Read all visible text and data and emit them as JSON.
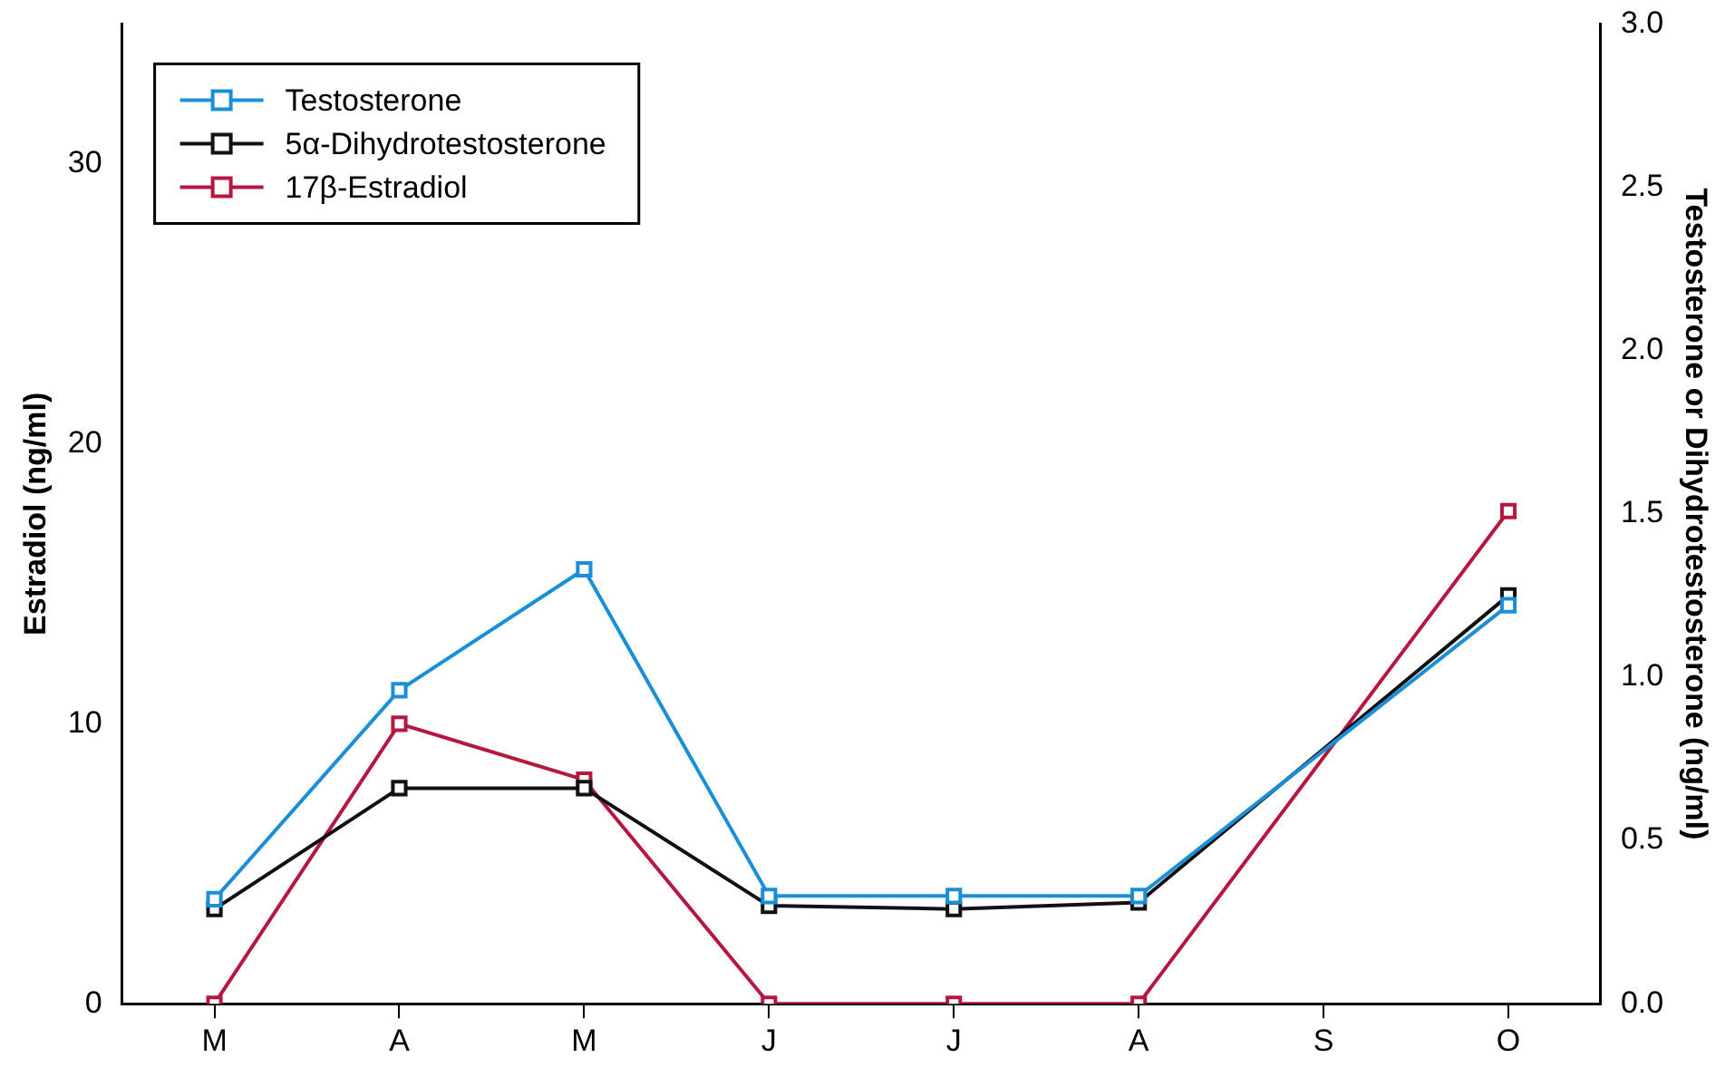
{
  "chart_data": {
    "type": "line",
    "categories": [
      "M",
      "A",
      "M",
      "J",
      "J",
      "A",
      "S",
      "O"
    ],
    "series": [
      {
        "name": "Testosterone",
        "color": "#1a8fd8",
        "axis": "y2",
        "values": [
          0.32,
          0.96,
          1.33,
          0.33,
          0.33,
          0.33,
          null,
          1.22
        ]
      },
      {
        "name": "5α-Dihydrotestosterone",
        "color": "#111111",
        "axis": "y2",
        "values": [
          0.29,
          0.66,
          0.66,
          0.3,
          0.29,
          0.31,
          null,
          1.25
        ]
      },
      {
        "name": "17β-Estradiol",
        "color": "#b5173f",
        "axis": "y",
        "values": [
          0,
          10,
          8,
          0,
          0,
          0,
          null,
          17.6
        ]
      }
    ],
    "ylabel": "Estradiol (ng/ml)",
    "y2label": "Testosterone or Dihydrotestosterone (ng/ml)",
    "ylim": [
      0,
      35
    ],
    "yticks": [
      0,
      10,
      20,
      30
    ],
    "y2lim": [
      0,
      3
    ],
    "y2ticks": [
      {
        "value": 0,
        "label": "0.0"
      },
      {
        "value": 0.5,
        "label": "0.5"
      },
      {
        "value": 1,
        "label": "1.0"
      },
      {
        "value": 1.5,
        "label": "1.5"
      },
      {
        "value": 2,
        "label": "2.0"
      },
      {
        "value": 2.5,
        "label": "2.5"
      },
      {
        "value": 3,
        "label": "3.0"
      }
    ],
    "grid": false,
    "legend": "top left",
    "marker": "square",
    "line_style": "solid"
  }
}
